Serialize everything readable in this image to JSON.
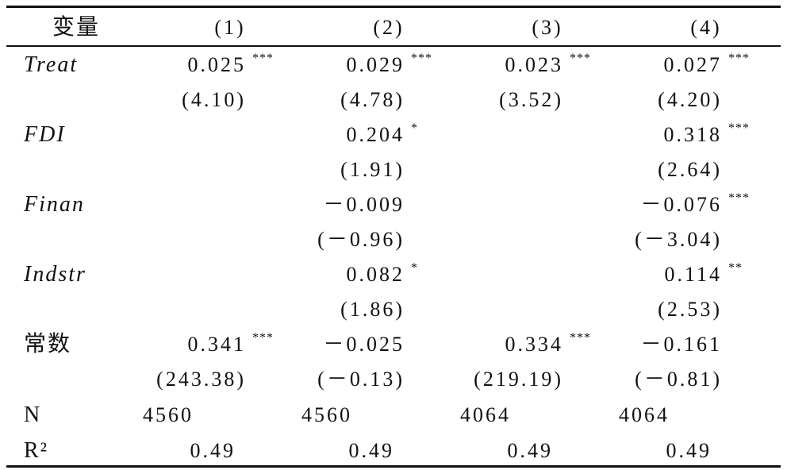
{
  "table": {
    "header": [
      "变量",
      "(1)",
      "(2)",
      "(3)",
      "(4)"
    ],
    "rows": [
      {
        "label": "Treat",
        "style": "italic",
        "coef": [
          {
            "value": "0.025",
            "stars": "***"
          },
          {
            "value": "0.029",
            "stars": "***"
          },
          {
            "value": "0.023",
            "stars": "***"
          },
          {
            "value": "0.027",
            "stars": "***"
          }
        ],
        "t": [
          "(4.10)",
          "(4.78)",
          "(3.52)",
          "(4.20)"
        ]
      },
      {
        "label": "FDI",
        "style": "italic",
        "coef": [
          null,
          {
            "value": "0.204",
            "stars": "*"
          },
          null,
          {
            "value": "0.318",
            "stars": "***"
          }
        ],
        "t": [
          null,
          "(1.91)",
          null,
          "(2.64)"
        ]
      },
      {
        "label": "Finan",
        "style": "italic",
        "coef": [
          null,
          {
            "value": "－0.009"
          },
          null,
          {
            "value": "－0.076",
            "stars": "***"
          }
        ],
        "t": [
          null,
          "(－0.96)",
          null,
          "(－3.04)"
        ]
      },
      {
        "label": "Indstr",
        "style": "italic",
        "coef": [
          null,
          {
            "value": "0.082",
            "stars": "*"
          },
          null,
          {
            "value": "0.114",
            "stars": "**"
          }
        ],
        "t": [
          null,
          "(1.86)",
          null,
          "(2.53)"
        ]
      },
      {
        "label": "常数",
        "style": "normal",
        "coef": [
          {
            "value": "0.341",
            "stars": "***"
          },
          {
            "value": "－0.025"
          },
          {
            "value": "0.334",
            "stars": "***"
          },
          {
            "value": "－0.161"
          }
        ],
        "t": [
          "(243.38)",
          "(－0.13)",
          "(219.19)",
          "(－0.81)"
        ]
      }
    ],
    "stats": [
      {
        "label": "N",
        "values": [
          "4560",
          "4560",
          "4064",
          "4064"
        ]
      },
      {
        "label": "R²",
        "values": [
          "0.49",
          "0.49",
          "0.49",
          "0.49"
        ]
      }
    ]
  }
}
